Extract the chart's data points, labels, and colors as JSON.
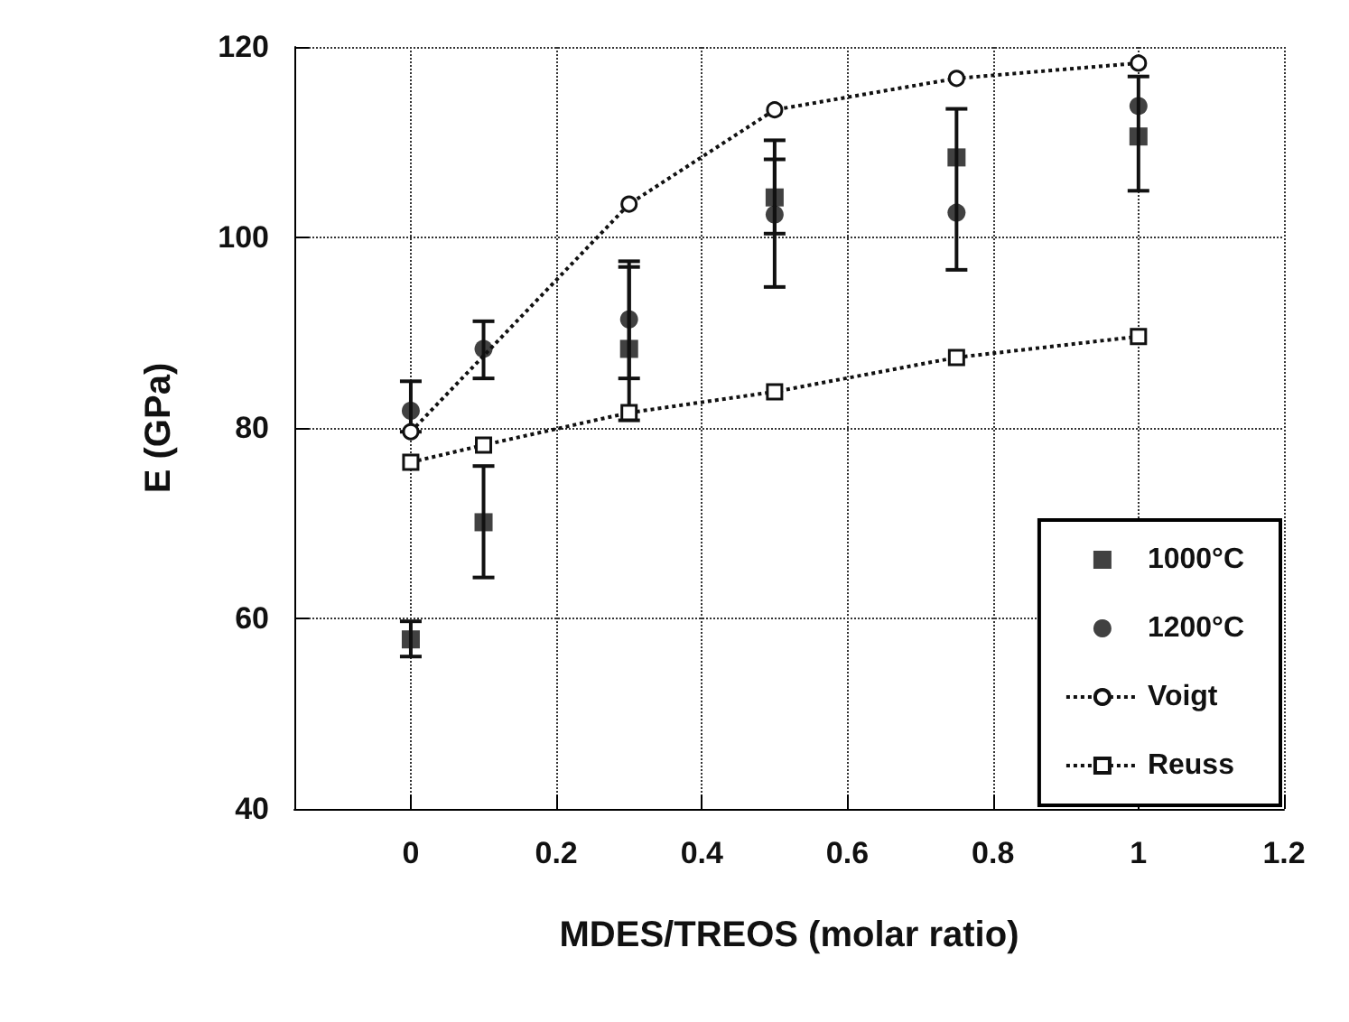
{
  "chart_data": {
    "type": "scatter",
    "xlabel": "MDES/TREOS (molar ratio)",
    "ylabel": "E (GPa)",
    "xlim": [
      -0.16,
      1.2
    ],
    "xticks": [
      0,
      0.2,
      0.4,
      0.6,
      0.8,
      1,
      1.2
    ],
    "ylim": [
      40,
      120
    ],
    "yticks": [
      40,
      60,
      80,
      100,
      120
    ],
    "grid": true,
    "legend": "bottom right",
    "series": [
      {
        "name": "1000°C",
        "marker": "square",
        "color": "#111111",
        "x": [
          0,
          0.1,
          0.3,
          0.5,
          0.75,
          1
        ],
        "values": [
          57.8,
          70.1,
          88.3,
          104.2,
          108.4,
          110.6
        ],
        "errors": [
          [
            56.0,
            59.7
          ],
          [
            64.3,
            76.0
          ],
          [
            85.2,
            96.9
          ],
          [
            100.4,
            108.2
          ],
          [
            96.6,
            113.5
          ],
          [
            104.9,
            116.9
          ]
        ]
      },
      {
        "name": "1200°C",
        "marker": "circle",
        "color": "#111111",
        "x": [
          0,
          0.1,
          0.3,
          0.5,
          0.75,
          1
        ],
        "values": [
          81.8,
          88.3,
          91.4,
          102.4,
          102.6,
          113.8
        ],
        "errors": [
          [
            79.6,
            84.9
          ],
          [
            85.2,
            91.2
          ],
          [
            80.8,
            97.5
          ],
          [
            94.8,
            110.2
          ],
          null,
          null
        ]
      },
      {
        "name": "Voigt",
        "type": "line",
        "marker": "circle",
        "line_style": "dotted",
        "color": "#111111",
        "x": [
          0,
          0.3,
          0.5,
          0.75,
          1
        ],
        "values": [
          79.6,
          103.5,
          113.4,
          116.7,
          118.3
        ]
      },
      {
        "name": "Reuss",
        "type": "line",
        "marker": "square",
        "line_style": "dotted",
        "color": "#111111",
        "x": [
          0,
          0.1,
          0.3,
          0.5,
          0.75,
          1
        ],
        "values": [
          76.4,
          78.2,
          81.6,
          83.8,
          87.4,
          89.6
        ]
      }
    ]
  }
}
